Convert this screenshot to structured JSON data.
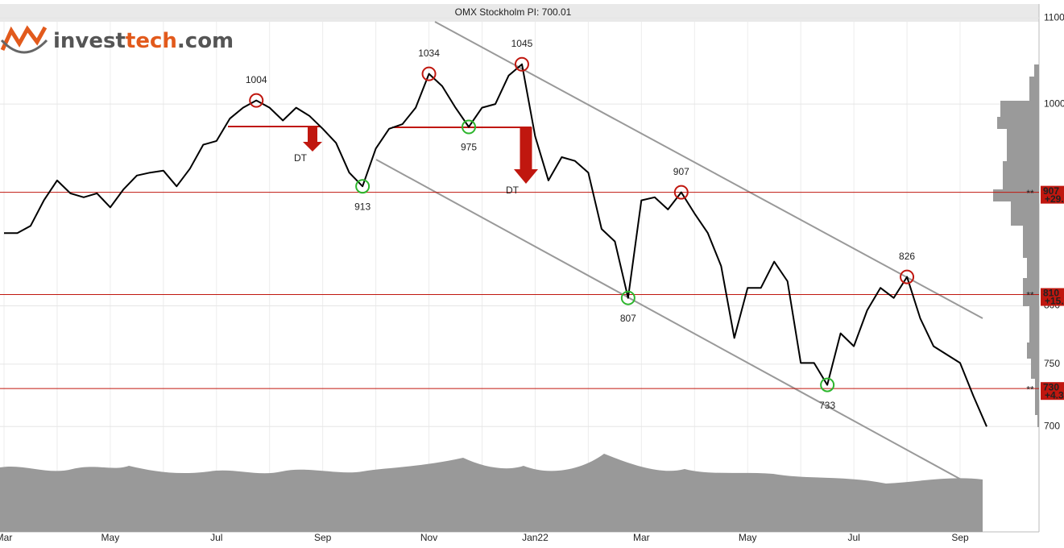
{
  "chart_data": {
    "type": "line",
    "title": "OMX Stockholm PI: 700.01",
    "logo_parts": [
      "invest",
      "tech",
      ".com"
    ],
    "log_scale": true,
    "grid": true,
    "ylim": [
      623,
      1116
    ],
    "yticks": [
      700,
      750,
      800,
      1000,
      1100
    ],
    "categories": [
      "Mar",
      null,
      null,
      null,
      null,
      null,
      null,
      null,
      "May",
      null,
      null,
      null,
      null,
      null,
      null,
      null,
      "Jul",
      null,
      null,
      null,
      null,
      null,
      null,
      null,
      "Sep",
      null,
      null,
      null,
      null,
      null,
      null,
      null,
      "Nov",
      null,
      null,
      null,
      null,
      null,
      null,
      null,
      "Jan22",
      null,
      null,
      null,
      null,
      null,
      null,
      null,
      "Mar",
      null,
      null,
      null,
      null,
      null,
      null,
      null,
      "May",
      null,
      null,
      null,
      null,
      null,
      null,
      null,
      "Jul",
      null,
      null,
      null,
      null,
      null,
      null,
      null,
      "Sep",
      null,
      null
    ],
    "series": [
      {
        "color": "#000000",
        "values": [
          867,
          867,
          874,
          899,
          919,
          906,
          902,
          906,
          892,
          910,
          924,
          927,
          929,
          913,
          931,
          956,
          960,
          984,
          996,
          1004,
          996,
          982,
          996,
          987,
          973,
          958,
          927,
          913,
          952,
          973,
          978,
          996,
          1034,
          1020,
          996,
          975,
          996,
          1000,
          1032,
          1045,
          965,
          919,
          943,
          939,
          927,
          871,
          859,
          807,
          899,
          902,
          890,
          907,
          886,
          867,
          836,
          772,
          816,
          816,
          840,
          822,
          751,
          751,
          733,
          776,
          765,
          796,
          816,
          807,
          826,
          789,
          765,
          758,
          751,
          724,
          700
        ]
      }
    ],
    "annotations": [
      {
        "index": 19,
        "value": 1004,
        "kind": "top"
      },
      {
        "index": 27,
        "value": 913,
        "kind": "bottom"
      },
      {
        "index": 32,
        "value": 1034,
        "kind": "top"
      },
      {
        "index": 35,
        "value": 975,
        "kind": "bottom"
      },
      {
        "index": 39,
        "value": 1045,
        "kind": "top"
      },
      {
        "index": 47,
        "value": 807,
        "kind": "bottom"
      },
      {
        "index": 51,
        "value": 907,
        "kind": "top"
      },
      {
        "index": 62,
        "value": 733,
        "kind": "bottom"
      },
      {
        "index": 68,
        "value": 826,
        "kind": "top"
      }
    ],
    "levels": [
      {
        "value": 907,
        "marker": "**",
        "change": "+29."
      },
      {
        "value": 810,
        "marker": "**",
        "change": "+15."
      },
      {
        "value": 730,
        "marker": "**",
        "change": "+4.3"
      }
    ],
    "signals": [
      {
        "label": "DT"
      },
      {
        "label": "DT"
      }
    ]
  }
}
